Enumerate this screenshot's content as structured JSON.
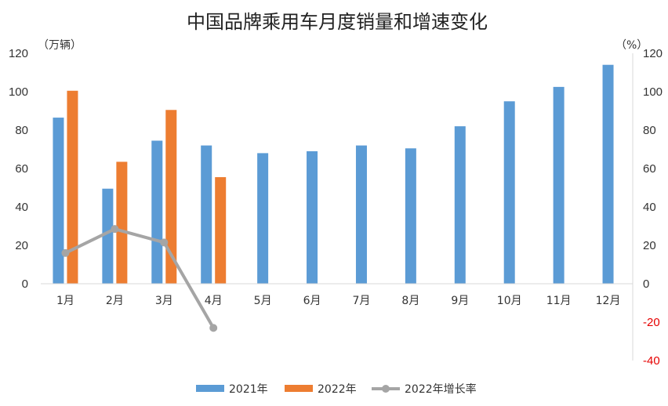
{
  "chart_data": {
    "type": "bar",
    "title": "中国品牌乘用车月度销量和增速变化",
    "ylabel_left": "（万辆）",
    "ylabel_right": "（%）",
    "categories": [
      "1月",
      "2月",
      "3月",
      "4月",
      "5月",
      "6月",
      "7月",
      "8月",
      "9月",
      "10月",
      "11月",
      "12月"
    ],
    "ylim_left": [
      0,
      120
    ],
    "ylim_right": [
      -40,
      120
    ],
    "left_ticks": [
      0,
      20,
      40,
      60,
      80,
      100,
      120
    ],
    "right_ticks": [
      -40,
      -20,
      0,
      20,
      40,
      60,
      80,
      100,
      120
    ],
    "series": [
      {
        "name": "2021年",
        "type": "bar",
        "axis": "left",
        "color": "#5b9bd5",
        "values": [
          86.5,
          49.5,
          74.5,
          72,
          68,
          69,
          72,
          70.5,
          82,
          95,
          102.5,
          114
        ]
      },
      {
        "name": "2022年",
        "type": "bar",
        "axis": "left",
        "color": "#ed7d31",
        "values": [
          100.5,
          63.5,
          90.5,
          55.5,
          null,
          null,
          null,
          null,
          null,
          null,
          null,
          null
        ]
      },
      {
        "name": "2022年增长率",
        "type": "line",
        "axis": "right",
        "color": "#a5a5a5",
        "values": [
          16,
          28.5,
          21.5,
          -23,
          null,
          null,
          null,
          null,
          null,
          null,
          null,
          null
        ]
      }
    ],
    "negative_tick_color": "#e60000",
    "grid": false,
    "legend_position": "bottom"
  }
}
